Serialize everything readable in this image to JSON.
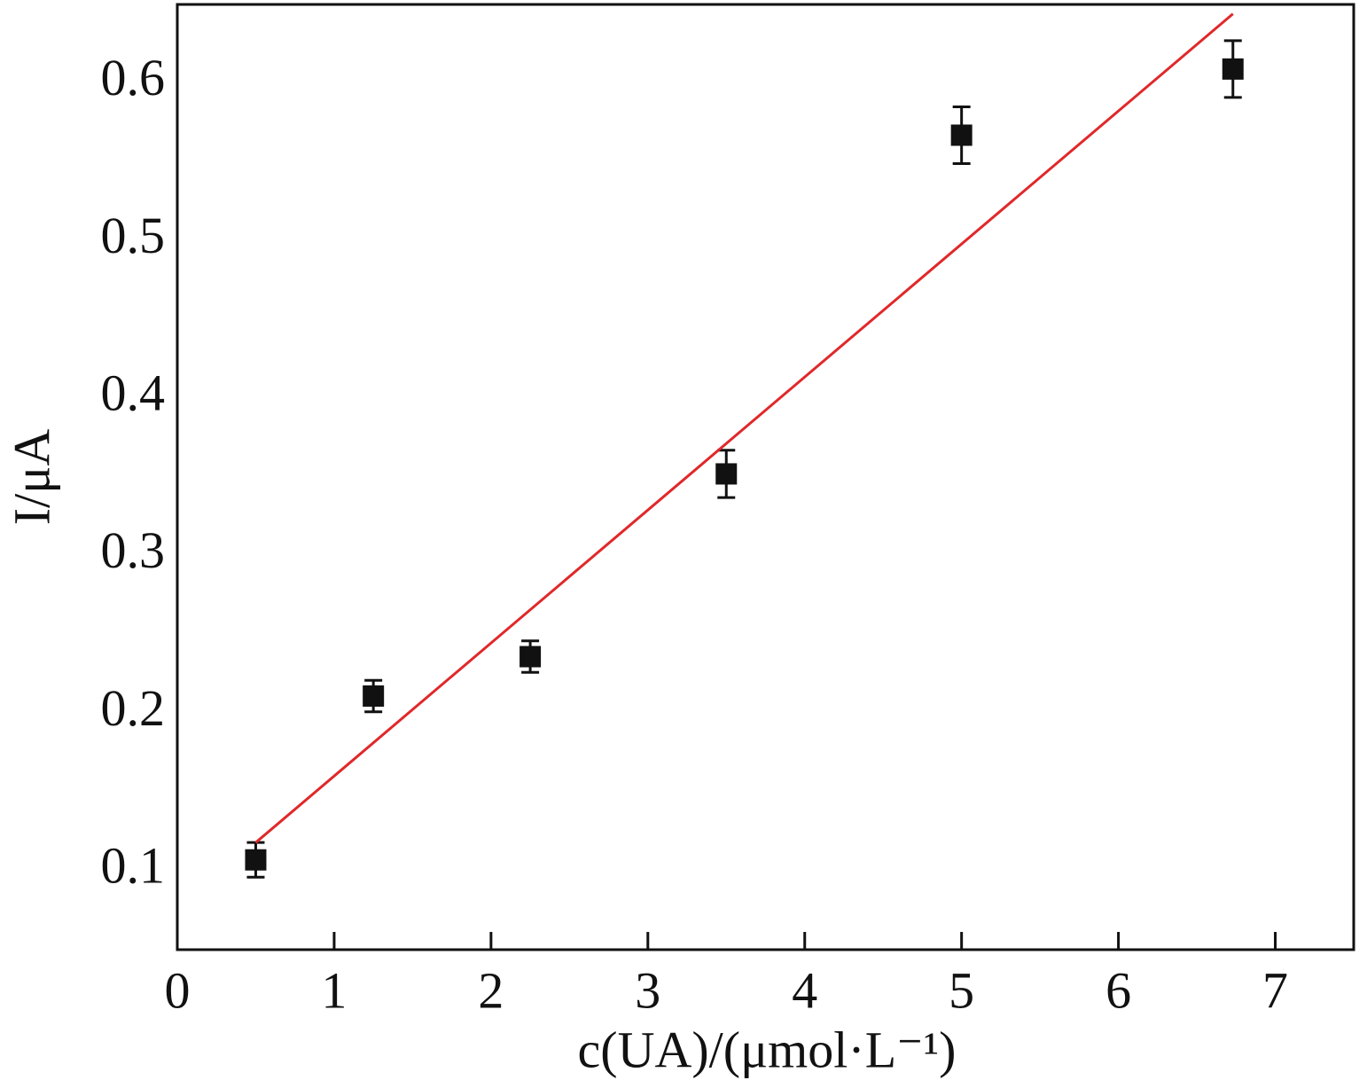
{
  "chart_data": {
    "type": "scatter",
    "xlabel": "c(UA)/(μmol·L⁻¹)",
    "ylabel": "I/μA",
    "xlim": [
      0,
      7.5
    ],
    "ylim": [
      0.05,
      0.65
    ],
    "xticks": [
      0,
      1,
      2,
      3,
      4,
      5,
      6,
      7
    ],
    "yticks": [
      0.1,
      0.2,
      0.3,
      0.4,
      0.5,
      0.6
    ],
    "series": [
      {
        "type": "scatter",
        "color": "#111111",
        "x": [
          0.5,
          1.25,
          2.25,
          3.5,
          5,
          6.73
        ],
        "values": [
          0.107,
          0.211,
          0.236,
          0.352,
          0.567,
          0.609
        ],
        "errors": [
          0.011,
          0.01,
          0.01,
          0.015,
          0.018,
          0.018
        ]
      },
      {
        "type": "line",
        "color": "#e0282a",
        "x": [
          0.5,
          6.73
        ],
        "values": [
          0.118,
          0.644
        ]
      }
    ]
  }
}
